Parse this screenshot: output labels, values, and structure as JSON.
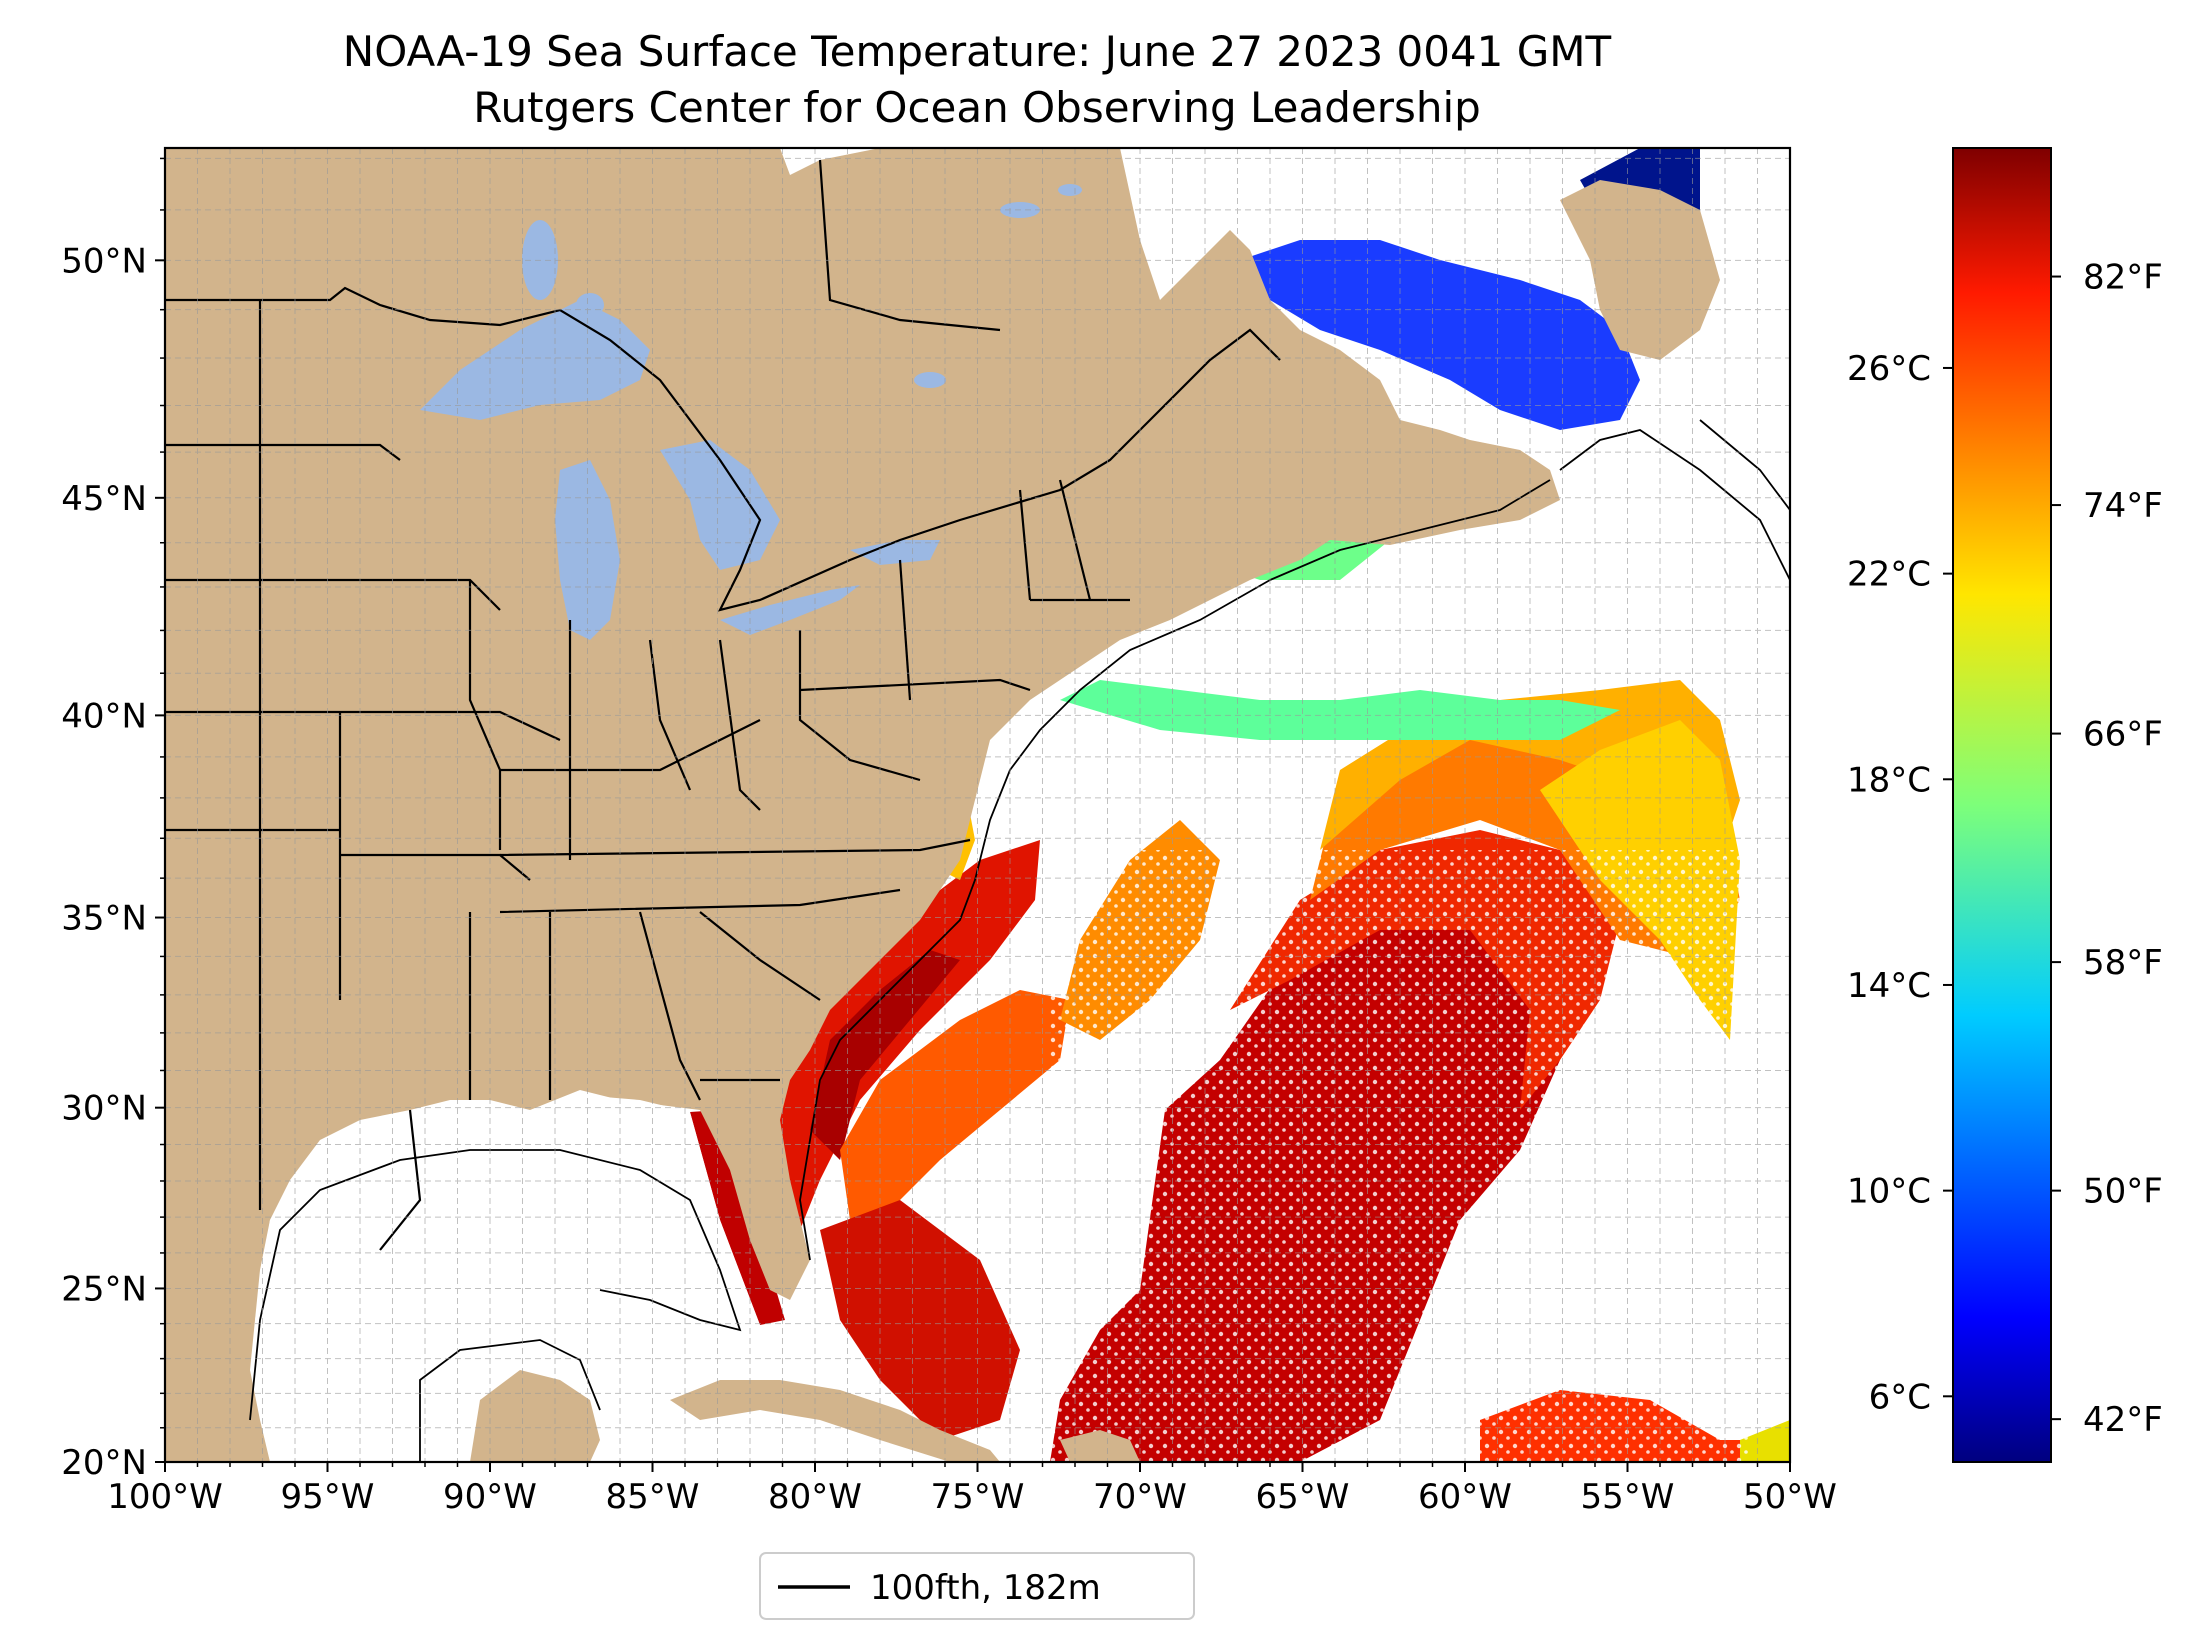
{
  "title": {
    "line1": "NOAA-19 Sea Surface Temperature: June 27 2023 0041 GMT",
    "line2": "Rutgers Center for Ocean Observing Leadership"
  },
  "map": {
    "lon_range": [
      -100,
      -50
    ],
    "lat_range": [
      20,
      52.2
    ],
    "lon_ticks": [
      "100°W",
      "95°W",
      "90°W",
      "85°W",
      "80°W",
      "75°W",
      "70°W",
      "65°W",
      "60°W",
      "55°W",
      "50°W"
    ],
    "lat_ticks": [
      "20°N",
      "25°N",
      "30°N",
      "35°N",
      "40°N",
      "45°N",
      "50°N"
    ],
    "land_color": "#d2b48c",
    "lake_color": "#9bb8e3",
    "grid": "on, 1° dashed"
  },
  "legend": {
    "label": "100fth, 182m",
    "placement": "bottom-center"
  },
  "colorbar": {
    "colormap": "jet",
    "f_ticks": [
      "42°F",
      "50°F",
      "58°F",
      "66°F",
      "74°F",
      "82°F"
    ],
    "c_ticks": [
      "6°C",
      "10°C",
      "14°C",
      "18°C",
      "22°C",
      "26°C"
    ],
    "range_f": [
      40.5,
      86.5
    ]
  }
}
